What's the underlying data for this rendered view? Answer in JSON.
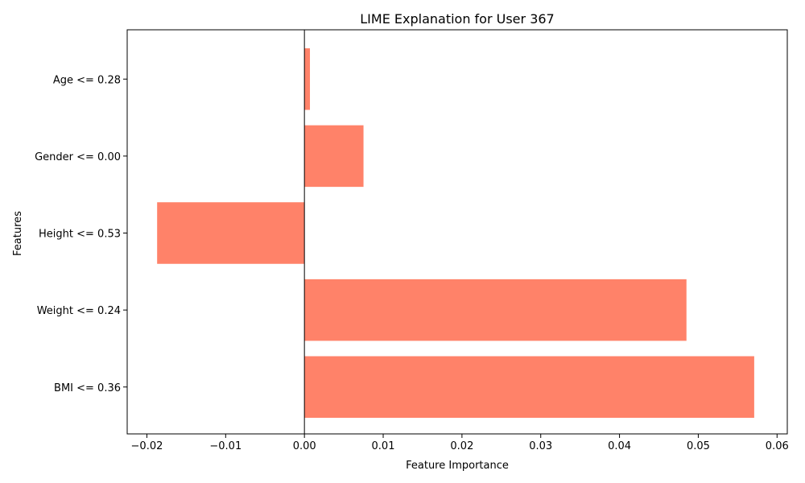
{
  "chart_data": {
    "type": "bar",
    "orientation": "horizontal",
    "title": "LIME Explanation for User 367",
    "xlabel": "Feature Importance",
    "ylabel": "Features",
    "categories": [
      "BMI <= 0.36",
      "Weight <= 0.24",
      "Height <= 0.53",
      "Gender <= 0.00",
      "Age <= 0.28"
    ],
    "values": [
      0.0571,
      0.0485,
      -0.0187,
      0.0075,
      0.0007
    ],
    "xlim": [
      -0.0225,
      0.0613
    ],
    "xticks": [
      -0.02,
      -0.01,
      0.0,
      0.01,
      0.02,
      0.03,
      0.04,
      0.05,
      0.06
    ],
    "xtick_labels": [
      "−0.02",
      "−0.01",
      "0.00",
      "0.01",
      "0.02",
      "0.03",
      "0.04",
      "0.05",
      "0.06"
    ],
    "bar_color": "#ff8269",
    "zero_line": true,
    "grid": false
  }
}
